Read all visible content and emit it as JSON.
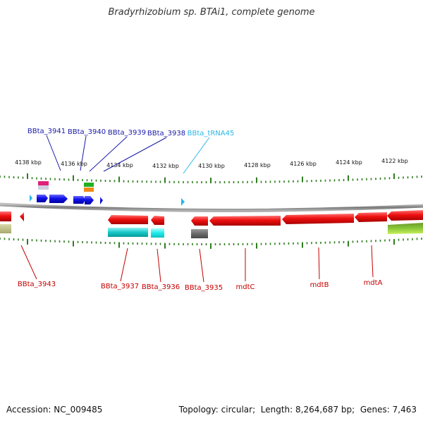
{
  "title": "Bradyrhizobium sp. BTAi1, complete genome",
  "footer": {
    "accession_label": "Accession:",
    "accession": "NC_009485",
    "topology_label": "Topology:",
    "topology": "circular",
    "length_label": "Length:",
    "length": "8,264,687 bp",
    "genes_label": "Genes:",
    "genes": "7,463"
  },
  "ruler": {
    "ticks": [
      "4138 kbp",
      "4136 kbp",
      "4134 kbp",
      "4132 kbp",
      "4130 kbp",
      "4128 kbp",
      "4126 kbp",
      "4124 kbp",
      "4122 kbp"
    ]
  },
  "colors": {
    "forward_gene": "#1010e0",
    "reverse_gene": "#e80000",
    "trna": "#29b6e8",
    "tick": "#2e7d1e",
    "backbone": "#8a8a8a",
    "forward_label": "#1a1aa8",
    "reverse_label": "#c40000",
    "trna_label": "#29b6e8"
  },
  "genes": {
    "forward": [
      {
        "name": "BBta_3941",
        "kind": "cds"
      },
      {
        "name": "BBta_3940",
        "kind": "cds"
      },
      {
        "name": "BBta_3939",
        "kind": "cds"
      },
      {
        "name": "BBta_3938",
        "kind": "cds"
      },
      {
        "name": "BBta_tRNA45",
        "kind": "trna"
      }
    ],
    "reverse": [
      {
        "name": "BBta_3943",
        "kind": "cds"
      },
      {
        "name": "BBta_3937",
        "kind": "cds"
      },
      {
        "name": "BBta_3936",
        "kind": "cds"
      },
      {
        "name": "BBta_3935",
        "kind": "cds"
      },
      {
        "name": "mdtC",
        "kind": "cds"
      },
      {
        "name": "mdtB",
        "kind": "cds"
      },
      {
        "name": "mdtA",
        "kind": "cds"
      }
    ]
  }
}
